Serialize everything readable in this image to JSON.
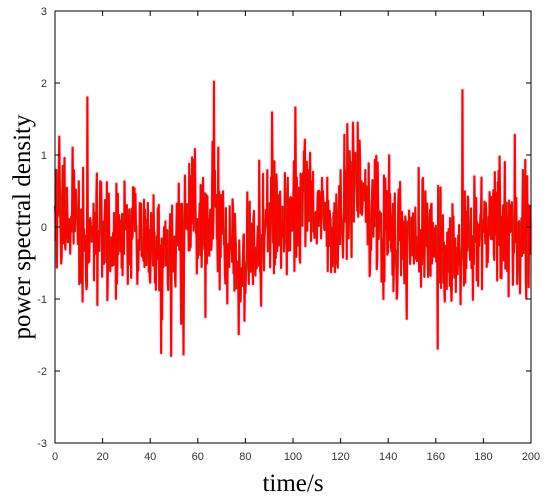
{
  "chart_data": {
    "type": "line",
    "title": "",
    "xlabel": "time/s",
    "ylabel": "power spectral density",
    "xlim": [
      0,
      200
    ],
    "ylim": [
      -3,
      3
    ],
    "xticks": [
      0,
      20,
      40,
      60,
      80,
      100,
      120,
      140,
      160,
      180,
      200
    ],
    "yticks": [
      -3,
      -2,
      -1,
      0,
      1,
      2,
      3
    ],
    "grid": false,
    "legend": "none",
    "n_samples": 1000,
    "dt": 0.2,
    "series": [
      {
        "color": "#ff0000",
        "edge_color": "#b03a1a",
        "glow_color": "#f3c6f3",
        "peaks": [
          {
            "x": 13.5,
            "y": 1.8
          },
          {
            "x": 66.8,
            "y": 2.02
          },
          {
            "x": 91.2,
            "y": 1.59
          },
          {
            "x": 101.0,
            "y": 1.66
          },
          {
            "x": 171.2,
            "y": 1.9
          },
          {
            "x": 44.5,
            "y": -1.75
          },
          {
            "x": 48.9,
            "y": -1.79
          },
          {
            "x": 54.0,
            "y": -1.77
          },
          {
            "x": 160.8,
            "y": -1.69
          }
        ]
      }
    ]
  }
}
